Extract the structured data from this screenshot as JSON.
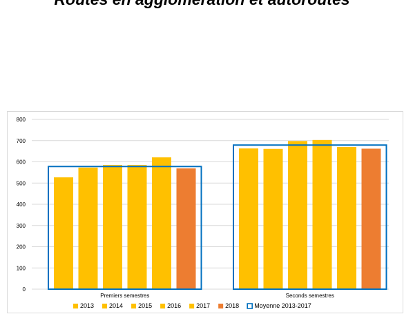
{
  "title": "Routes en agglomération et autoroutes",
  "chart_data": {
    "type": "bar",
    "title": "Routes en agglomération et autoroutes",
    "categories": [
      "Premiers semestres",
      "Seconds semestres"
    ],
    "series": [
      {
        "name": "2013",
        "color": "#FFC000",
        "values": [
          527,
          663
        ]
      },
      {
        "name": "2014",
        "color": "#FFC000",
        "values": [
          573,
          661
        ]
      },
      {
        "name": "2015",
        "color": "#FFC000",
        "values": [
          585,
          698
        ]
      },
      {
        "name": "2016",
        "color": "#FFC000",
        "values": [
          585,
          703
        ]
      },
      {
        "name": "2017",
        "color": "#FFC000",
        "values": [
          621,
          670
        ]
      },
      {
        "name": "2018",
        "color": "#ED7D31",
        "values": [
          569,
          662
        ]
      }
    ],
    "reference": {
      "name": "Moyenne 2013-2017",
      "color": "#0070C0",
      "values": [
        578,
        679
      ]
    },
    "yticks": [
      0,
      100,
      200,
      300,
      400,
      500,
      600,
      700,
      800
    ],
    "ylim": [
      0,
      800
    ],
    "grid": true,
    "legend": "bottom"
  }
}
